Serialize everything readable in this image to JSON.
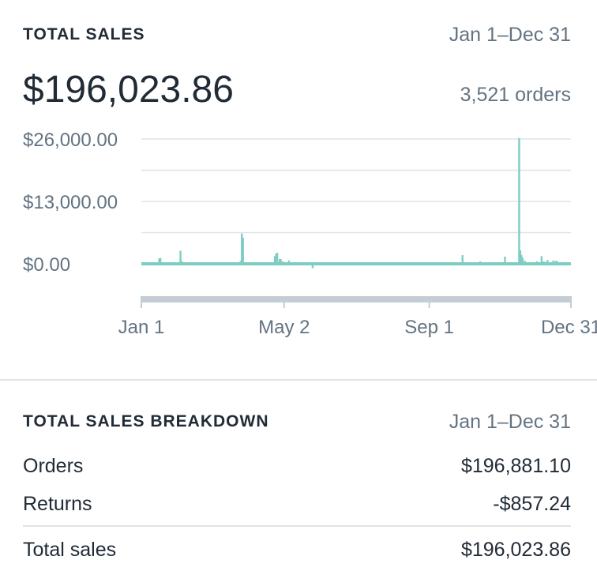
{
  "summary": {
    "title": "TOTAL SALES",
    "date_range": "Jan 1–Dec 31",
    "total": "$196,023.86",
    "orders": "3,521 orders"
  },
  "chart_data": {
    "type": "bar",
    "y_tick_labels": [
      "$26,000.00",
      "$13,000.00",
      "$0.00"
    ],
    "y_ticks": [
      26000,
      13000,
      0
    ],
    "ylim": [
      -1300,
      26000
    ],
    "x_tick_labels": [
      "Jan 1",
      "May 2",
      "Sep 1",
      "Dec 31"
    ],
    "x_ticks_day": [
      0,
      121,
      244,
      364
    ],
    "days_in_range": 365,
    "grid": true,
    "bar_color": "#7ecdc4",
    "baseline_color": "#7ecdc4",
    "track_color": "#c4cdd5",
    "points": [
      {
        "day": 15,
        "value": 1100
      },
      {
        "day": 16,
        "value": 1200
      },
      {
        "day": 33,
        "value": 2700
      },
      {
        "day": 34,
        "value": 600
      },
      {
        "day": 57,
        "value": 300
      },
      {
        "day": 84,
        "value": 600
      },
      {
        "day": 85,
        "value": 6300
      },
      {
        "day": 86,
        "value": 5400
      },
      {
        "day": 113,
        "value": 1600
      },
      {
        "day": 114,
        "value": 2100
      },
      {
        "day": 115,
        "value": 2300
      },
      {
        "day": 117,
        "value": 1000
      },
      {
        "day": 118,
        "value": 1000
      },
      {
        "day": 120,
        "value": 500
      },
      {
        "day": 125,
        "value": 700
      },
      {
        "day": 145,
        "value": -900
      },
      {
        "day": 169,
        "value": 200
      },
      {
        "day": 188,
        "value": 300
      },
      {
        "day": 272,
        "value": 1800
      },
      {
        "day": 287,
        "value": 500
      },
      {
        "day": 308,
        "value": 1500
      },
      {
        "day": 320,
        "value": 26200
      },
      {
        "day": 321,
        "value": 2800
      },
      {
        "day": 322,
        "value": 1800
      },
      {
        "day": 323,
        "value": 1200
      },
      {
        "day": 325,
        "value": 600
      },
      {
        "day": 335,
        "value": 500
      },
      {
        "day": 339,
        "value": 1600
      },
      {
        "day": 341,
        "value": 500
      },
      {
        "day": 344,
        "value": 800
      },
      {
        "day": 349,
        "value": 700
      },
      {
        "day": 351,
        "value": 600
      },
      {
        "day": 352,
        "value": 600
      }
    ]
  },
  "breakdown": {
    "title": "TOTAL SALES BREAKDOWN",
    "date_range": "Jan 1–Dec 31",
    "rows": [
      {
        "label": "Orders",
        "value": "$196,881.10"
      },
      {
        "label": "Returns",
        "value": "-$857.24"
      }
    ],
    "total_label": "Total sales",
    "total_value": "$196,023.86"
  }
}
